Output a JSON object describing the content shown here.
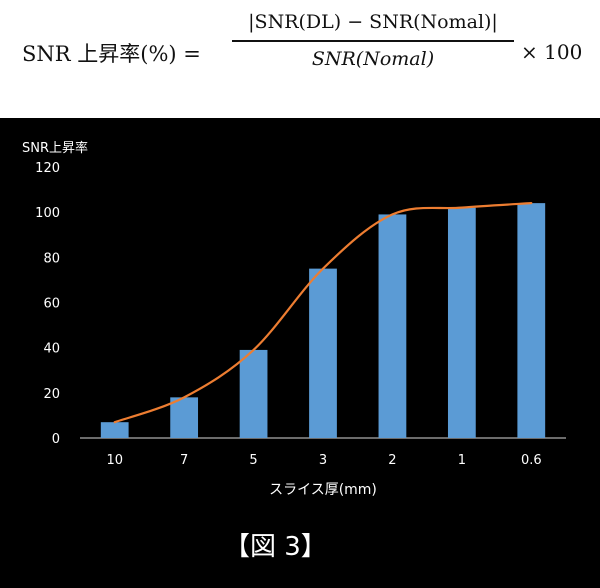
{
  "formula": {
    "lhs": "SNR 上昇率(%) =",
    "numerator": "|SNR(DL) − SNR(Nomal)|",
    "denominator": "SNR(Nomal)",
    "rhs": "× 100"
  },
  "caption": "【図 3】",
  "chart_data": {
    "type": "bar",
    "ylabel": "SNR上昇率",
    "xlabel": "スライス厚(mm)",
    "categories": [
      "10",
      "7",
      "5",
      "3",
      "2",
      "1",
      "0.6"
    ],
    "ylim": [
      0,
      120
    ],
    "yticks": [
      0,
      20,
      40,
      60,
      80,
      100,
      120
    ],
    "grid": false,
    "series": [
      {
        "type": "bar",
        "values": [
          7,
          18,
          39,
          75,
          99,
          102,
          104
        ],
        "color": "#5b9bd5"
      },
      {
        "type": "line",
        "values": [
          7,
          18,
          39,
          75,
          99,
          102,
          104
        ],
        "color": "#ed7d31"
      }
    ]
  }
}
